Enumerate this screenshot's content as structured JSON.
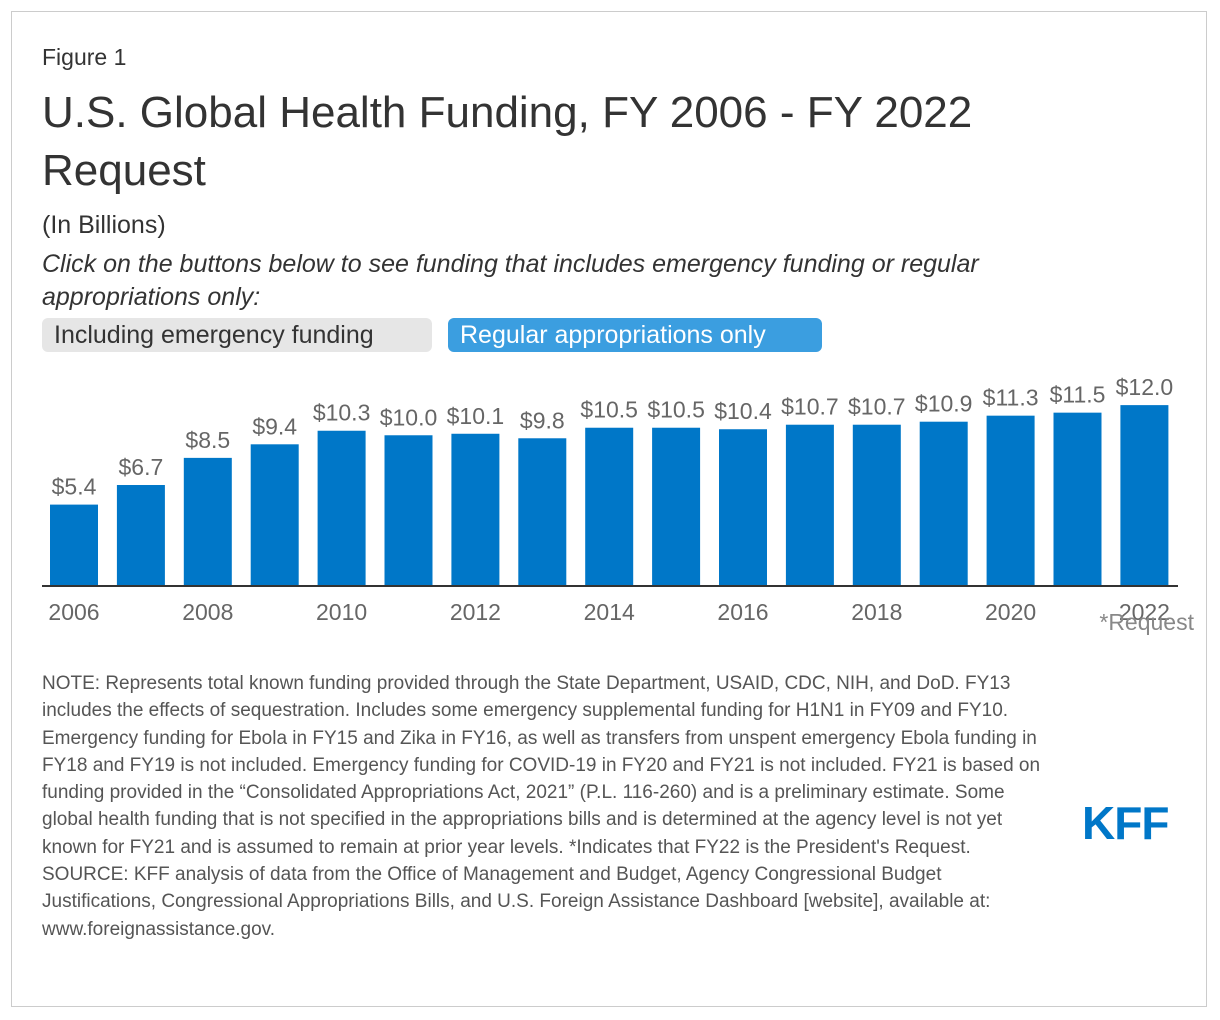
{
  "figure_label": "Figure 1",
  "title": "U.S. Global Health Funding, FY 2006 - FY 2022 Request",
  "subtitle": "(In Billions)",
  "instruction": "Click on the buttons below to see funding that includes emergency funding or regular appropriations only:",
  "buttons": {
    "emergency": "Including emergency funding",
    "regular": "Regular appropriations only"
  },
  "colors": {
    "bar": "#0077c8",
    "active_button": "#3b9ee0",
    "inactive_button": "#e6e6e6"
  },
  "chart_data": {
    "type": "bar",
    "categories": [
      "2006",
      "2007",
      "2008",
      "2009",
      "2010",
      "2011",
      "2012",
      "2013",
      "2014",
      "2015",
      "2016",
      "2017",
      "2018",
      "2019",
      "2020",
      "2021",
      "2022"
    ],
    "values": [
      5.4,
      6.7,
      8.5,
      9.4,
      10.3,
      10.0,
      10.1,
      9.8,
      10.5,
      10.5,
      10.4,
      10.7,
      10.7,
      10.9,
      11.3,
      11.5,
      12.0
    ],
    "data_labels": [
      "$5.4",
      "$6.7",
      "$8.5",
      "$9.4",
      "$10.3",
      "$10.0",
      "$10.1",
      "$9.8",
      "$10.5",
      "$10.5",
      "$10.4",
      "$10.7",
      "$10.7",
      "$10.9",
      "$11.3",
      "$11.5",
      "$12.0"
    ],
    "x_tick_labels": [
      "2006",
      "2008",
      "2010",
      "2012",
      "2014",
      "2016",
      "2018",
      "2020",
      "2022"
    ],
    "annotation": "*Request",
    "ylim": [
      0,
      13.6
    ],
    "xlabel": "",
    "ylabel": "",
    "grid": false
  },
  "note": "NOTE: Represents total known funding provided through the State Department, USAID, CDC, NIH, and DoD. FY13 includes the effects of sequestration. Includes some emergency supplemental funding for H1N1 in FY09 and FY10. Emergency funding for Ebola in FY15 and Zika in FY16, as well as transfers from unspent emergency Ebola funding in FY18 and FY19 is not included. Emergency funding for COVID-19 in FY20 and FY21 is not included. FY21 is based on funding provided in the “Consolidated Appropriations Act, 2021” (P.L. 116-260) and is a preliminary estimate. Some global health funding that is not specified in the appropriations bills and is determined at the agency level is not yet known for FY21 and is assumed to remain at prior year levels. *Indicates that FY22 is the President's Request.",
  "source": "SOURCE: KFF analysis of data from the Office of Management and Budget, Agency Congressional Budget Justifications, Congressional Appropriations Bills, and U.S. Foreign Assistance Dashboard [website], available at: www.foreignassistance.gov.",
  "logo_text": "KFF"
}
